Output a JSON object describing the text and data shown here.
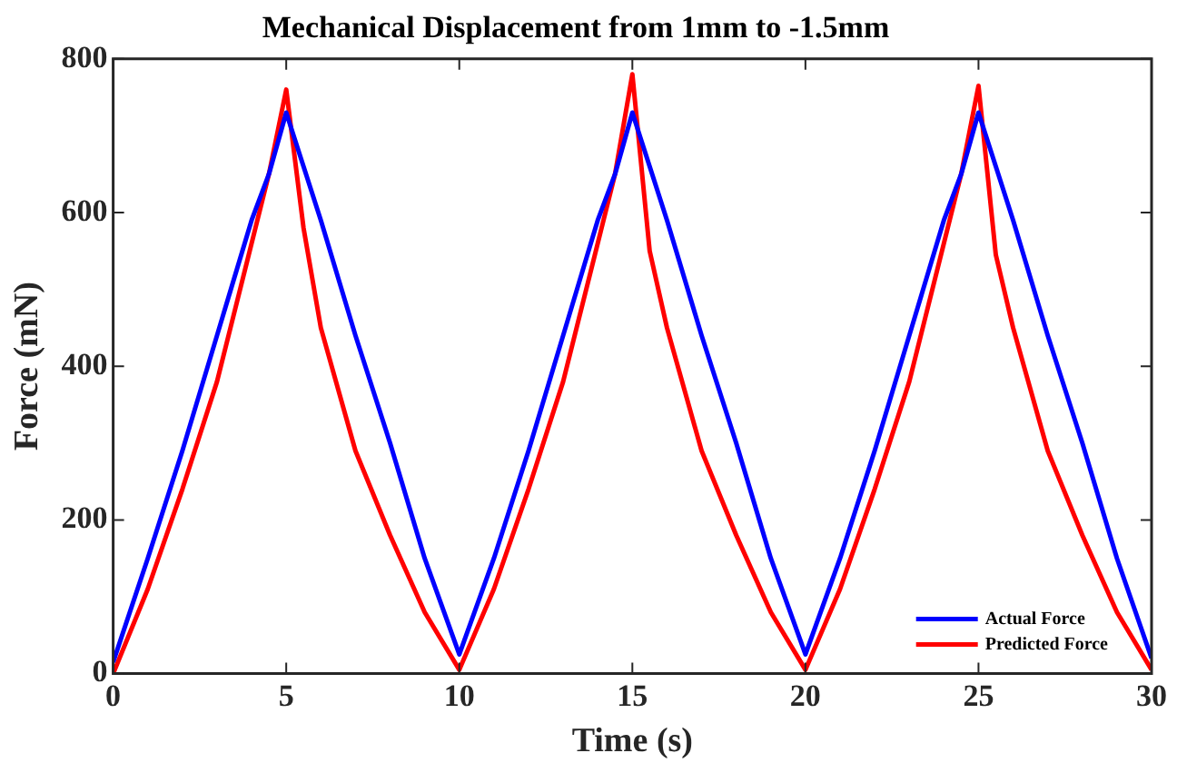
{
  "chart_data": {
    "type": "line",
    "title": "Mechanical Displacement from 1mm to -1.5mm",
    "xlabel": "Time (s)",
    "ylabel": "Force (mN)",
    "x": [
      0,
      1,
      2,
      3,
      4,
      4.5,
      5,
      5.5,
      6,
      7,
      8,
      9,
      10,
      11,
      12,
      13,
      14,
      14.5,
      15,
      15.5,
      16,
      17,
      18,
      19,
      20,
      21,
      22,
      23,
      24,
      24.5,
      25,
      25.5,
      26,
      27,
      28,
      29,
      30
    ],
    "series": [
      {
        "name": "Actual Force",
        "color": "#0000ff",
        "values": [
          15,
          150,
          290,
          440,
          590,
          650,
          730,
          660,
          590,
          440,
          300,
          150,
          25,
          150,
          290,
          440,
          590,
          650,
          730,
          660,
          590,
          440,
          300,
          150,
          25,
          150,
          290,
          440,
          590,
          650,
          730,
          660,
          590,
          440,
          300,
          150,
          20
        ]
      },
      {
        "name": "Predicted Force",
        "color": "#ff0000",
        "values": [
          0,
          110,
          240,
          380,
          560,
          650,
          760,
          580,
          450,
          290,
          180,
          80,
          5,
          110,
          240,
          380,
          560,
          650,
          780,
          550,
          450,
          290,
          180,
          80,
          5,
          110,
          240,
          380,
          560,
          650,
          765,
          545,
          450,
          290,
          180,
          80,
          5
        ]
      }
    ],
    "xlim": [
      0,
      30
    ],
    "xticks": [
      0,
      5,
      10,
      15,
      20,
      25,
      30
    ],
    "ylim": [
      0,
      800
    ],
    "yticks": [
      0,
      200,
      400,
      600,
      800
    ],
    "grid": false,
    "legend": "bottom right",
    "marker": "none",
    "line_style": "solid"
  }
}
